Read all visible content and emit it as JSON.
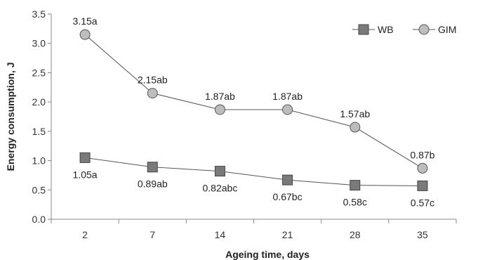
{
  "chart_data": {
    "type": "line",
    "categories": [
      "2",
      "7",
      "14",
      "21",
      "28",
      "35"
    ],
    "xlabel": "Ageing time, days",
    "ylabel": "Energy consumption, J",
    "ylim": [
      0,
      3.5
    ],
    "yticks": [
      "0.0",
      "0.5",
      "1.0",
      "1.5",
      "2.0",
      "2.5",
      "3.0",
      "3.5"
    ],
    "grid": false,
    "legend": "top-right",
    "series": [
      {
        "name": "WB",
        "marker": "square",
        "color": "#7a7a7a",
        "values": [
          1.05,
          0.89,
          0.82,
          0.67,
          0.58,
          0.57
        ],
        "labels": [
          "1.05a",
          "0.89ab",
          "0.82abc",
          "0.67bc",
          "0.58c",
          "0.57c"
        ]
      },
      {
        "name": "GIM",
        "marker": "circle",
        "color": "#bdbdbd",
        "values": [
          3.15,
          2.15,
          1.87,
          1.87,
          1.57,
          0.87
        ],
        "labels": [
          "3.15a",
          "2.15ab",
          "1.87ab",
          "1.87ab",
          "1.57ab",
          "0.87b"
        ]
      }
    ]
  }
}
